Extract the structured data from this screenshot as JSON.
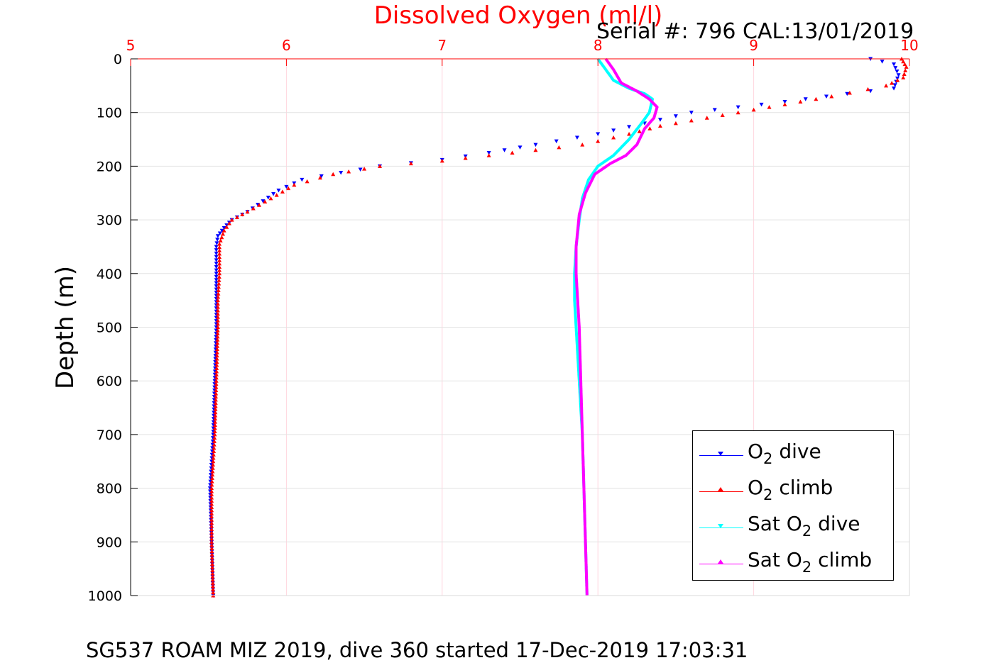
{
  "chart_data": {
    "type": "line",
    "title": "Dissolved Oxygen (ml/l)",
    "annotation": "Serial #: 796  CAL:13/01/2019",
    "footer": "SG537 ROAM MIZ 2019, dive 360 started 17-Dec-2019 17:03:31",
    "xlabel": "Dissolved Oxygen (ml/l)",
    "ylabel": "Depth (m)",
    "xlim": [
      5,
      10
    ],
    "ylim": [
      1000,
      0
    ],
    "y_reversed": true,
    "x_axis_position": "top",
    "x_ticks": [
      "5",
      "6",
      "7",
      "8",
      "9",
      "10"
    ],
    "y_ticks": [
      "0",
      "100",
      "200",
      "300",
      "400",
      "500",
      "600",
      "700",
      "800",
      "900",
      "1000"
    ],
    "grid": true,
    "legend_position": "bottom-right",
    "colors": {
      "title": "#ff0000",
      "x_ticks": "#ff0000",
      "o2_dive": "#0000ff",
      "o2_climb": "#ff0000",
      "sat_dive": "#00ffff",
      "sat_climb": "#ff00ff"
    },
    "legend": [
      {
        "base": "O",
        "sub": "2",
        "suffix": " dive",
        "marker": "down"
      },
      {
        "base": "O",
        "sub": "2",
        "suffix": " climb",
        "marker": "up"
      },
      {
        "base": "Sat O",
        "sub": "2",
        "suffix": " dive",
        "marker": "down"
      },
      {
        "base": "Sat O",
        "sub": "2",
        "suffix": " climb",
        "marker": "up"
      }
    ],
    "series": [
      {
        "name": "O2 dive",
        "marker": "down",
        "x": [
          9.75,
          9.9,
          9.93,
          9.9,
          9.6,
          9.2,
          8.9,
          8.6,
          8.3,
          8.0,
          7.6,
          7.3,
          7.0,
          6.6,
          6.35,
          6.1,
          5.95,
          5.85,
          5.75,
          5.65,
          5.6,
          5.56,
          5.55,
          5.55,
          5.55,
          5.54,
          5.53,
          5.52,
          5.51,
          5.52,
          5.53
        ],
        "y": [
          0,
          10,
          30,
          55,
          65,
          80,
          90,
          100,
          120,
          140,
          160,
          175,
          188,
          200,
          212,
          225,
          245,
          265,
          285,
          300,
          315,
          330,
          350,
          400,
          500,
          600,
          700,
          750,
          800,
          900,
          1000
        ]
      },
      {
        "name": "O2 climb",
        "marker": "up",
        "x": [
          9.95,
          9.98,
          9.96,
          9.85,
          9.5,
          9.2,
          8.9,
          8.7,
          8.4,
          8.2,
          7.9,
          7.6,
          7.3,
          7.0,
          6.6,
          6.3,
          6.05,
          5.9,
          5.75,
          5.65,
          5.6,
          5.57,
          5.57,
          5.56,
          5.56,
          5.55,
          5.54,
          5.53,
          5.52,
          5.52,
          5.53
        ],
        "y": [
          0,
          15,
          35,
          50,
          70,
          85,
          100,
          110,
          125,
          140,
          160,
          170,
          180,
          190,
          200,
          215,
          235,
          260,
          285,
          300,
          320,
          345,
          400,
          450,
          500,
          600,
          700,
          750,
          800,
          900,
          1000
        ]
      },
      {
        "name": "Sat O2 dive",
        "marker": "down",
        "x": [
          8.0,
          8.05,
          8.1,
          8.2,
          8.3,
          8.35,
          8.33,
          8.28,
          8.2,
          8.1,
          8.0,
          7.94,
          7.9,
          7.88,
          7.86,
          7.85,
          7.85,
          7.86,
          7.88,
          7.9,
          7.91,
          7.92,
          7.93
        ],
        "y": [
          0,
          20,
          40,
          55,
          65,
          75,
          100,
          120,
          150,
          180,
          200,
          225,
          260,
          300,
          350,
          400,
          450,
          500,
          600,
          700,
          800,
          900,
          1000
        ]
      },
      {
        "name": "Sat O2 climb",
        "marker": "up",
        "x": [
          8.05,
          8.1,
          8.15,
          8.25,
          8.33,
          8.38,
          8.36,
          8.3,
          8.25,
          8.18,
          8.08,
          7.98,
          7.92,
          7.88,
          7.86,
          7.86,
          7.87,
          7.88,
          7.89,
          7.9,
          7.91,
          7.92,
          7.93
        ],
        "y": [
          0,
          20,
          45,
          60,
          75,
          90,
          110,
          130,
          160,
          180,
          195,
          215,
          250,
          290,
          350,
          400,
          450,
          500,
          600,
          700,
          800,
          900,
          1000
        ]
      }
    ]
  }
}
